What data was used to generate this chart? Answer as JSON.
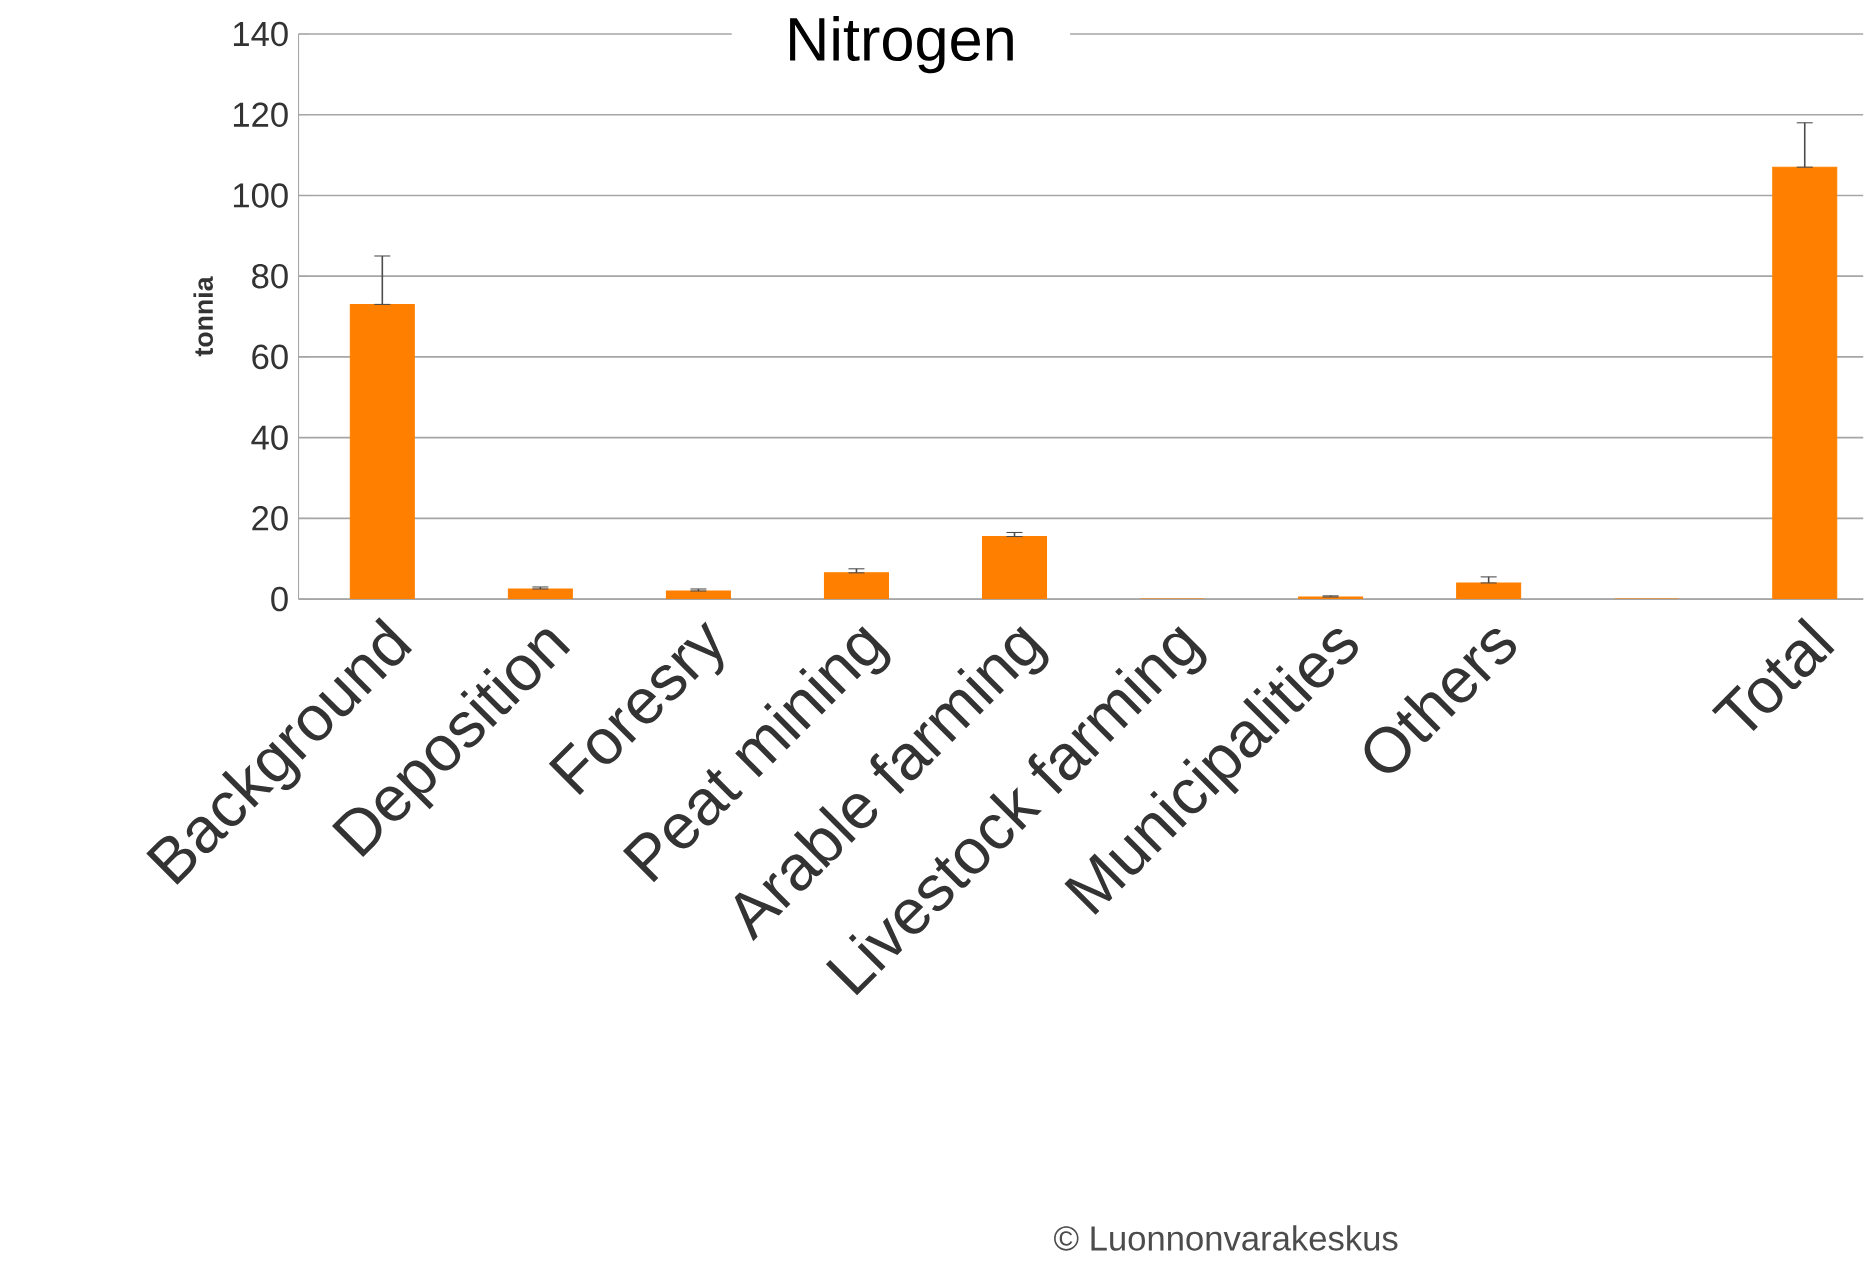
{
  "chart_data": {
    "type": "bar",
    "title": "Nitrogen",
    "ylabel": "tonnia",
    "categories": [
      "Background",
      "Deposition",
      "Foresry",
      "Peat mining",
      "Arable farming",
      "Livestock farming",
      "Municipalities",
      "Others",
      null,
      "Total"
    ],
    "values": [
      73,
      2.5,
      2,
      6.5,
      15.5,
      0,
      0.5,
      4,
      0,
      107
    ],
    "errors": [
      [
        73,
        85
      ],
      [
        2.5,
        3
      ],
      [
        2,
        2.5
      ],
      [
        6.5,
        7.5
      ],
      [
        15.5,
        16.5
      ],
      null,
      [
        0.5,
        0.8
      ],
      [
        4,
        5.5
      ],
      null,
      [
        107,
        118
      ]
    ],
    "color": "#ff8000",
    "ylim": [
      0,
      140
    ],
    "yticks": [
      0,
      20,
      40,
      60,
      80,
      100,
      120,
      140
    ],
    "grid": "y",
    "annotations": [
      "© Luonnonvarakeskus"
    ]
  }
}
